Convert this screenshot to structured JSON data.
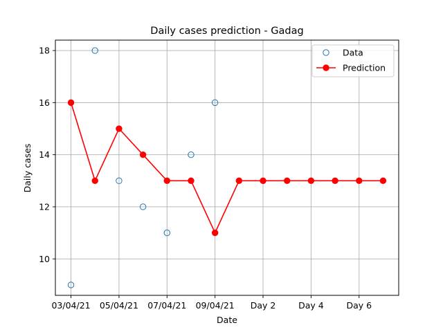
{
  "chart_data": {
    "type": "line",
    "title": "Daily cases prediction - Gadag",
    "xlabel": "Date",
    "ylabel": "Daily cases",
    "x_tick_labels": [
      "03/04/21",
      "05/04/21",
      "07/04/21",
      "09/04/21",
      "Day 2",
      "Day 4",
      "Day 6"
    ],
    "x_tick_positions": [
      0,
      2,
      4,
      6,
      8,
      10,
      12
    ],
    "xlim": [
      -0.65,
      13.65
    ],
    "ylim": [
      8.6,
      18.4
    ],
    "y_ticks": [
      10,
      12,
      14,
      16,
      18
    ],
    "grid": true,
    "legend_position": "top-right",
    "series": [
      {
        "name": "Data",
        "style": "markers-open",
        "color": "#1f77b4",
        "x": [
          0,
          1,
          2,
          3,
          4,
          5,
          6
        ],
        "values": [
          9,
          18,
          13,
          12,
          11,
          14,
          16
        ]
      },
      {
        "name": "Prediction",
        "style": "line-markers",
        "color": "#ff0000",
        "x": [
          0,
          1,
          2,
          3,
          4,
          5,
          6,
          7,
          8,
          9,
          10,
          11,
          12,
          13
        ],
        "values": [
          16,
          13,
          15,
          14,
          13,
          13,
          11,
          13,
          13,
          13,
          13,
          13,
          13,
          13
        ]
      }
    ]
  }
}
